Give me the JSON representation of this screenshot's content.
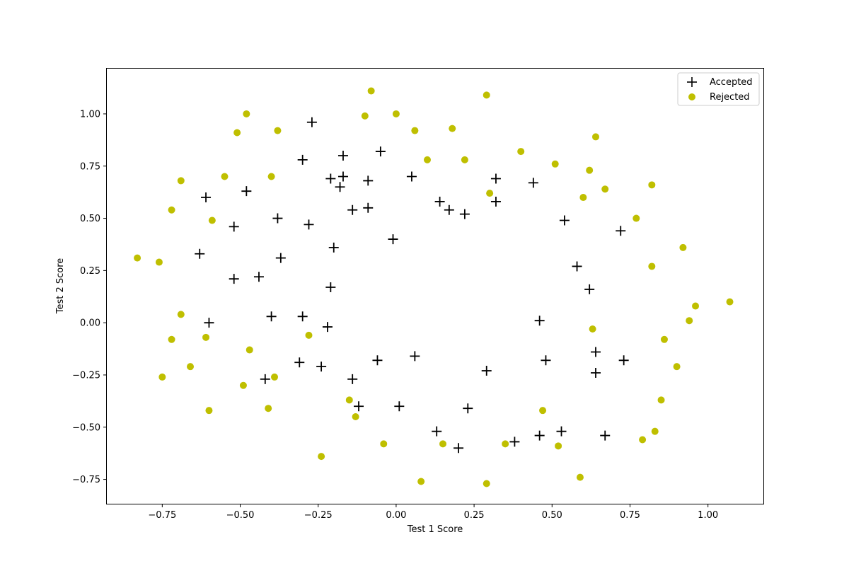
{
  "chart_data": {
    "type": "scatter",
    "title": "",
    "xlabel": "Test 1 Score",
    "ylabel": "Test 2 Score",
    "xlim": [
      -0.93,
      1.18
    ],
    "ylim": [
      -0.87,
      1.22
    ],
    "xticks": [
      {
        "value": -0.75,
        "label": "−0.75"
      },
      {
        "value": -0.5,
        "label": "−0.50"
      },
      {
        "value": -0.25,
        "label": "−0.25"
      },
      {
        "value": 0.0,
        "label": "0.00"
      },
      {
        "value": 0.25,
        "label": "0.25"
      },
      {
        "value": 0.5,
        "label": "0.50"
      },
      {
        "value": 0.75,
        "label": "0.75"
      },
      {
        "value": 1.0,
        "label": "1.00"
      }
    ],
    "yticks": [
      {
        "value": -0.75,
        "label": "−0.75"
      },
      {
        "value": -0.5,
        "label": "−0.50"
      },
      {
        "value": -0.25,
        "label": "−0.25"
      },
      {
        "value": 0.0,
        "label": "0.00"
      },
      {
        "value": 0.25,
        "label": "0.25"
      },
      {
        "value": 0.5,
        "label": "0.50"
      },
      {
        "value": 0.75,
        "label": "0.75"
      },
      {
        "value": 1.0,
        "label": "1.00"
      }
    ],
    "grid": false,
    "legend_position": "top-right",
    "series": [
      {
        "name": "Accepted",
        "marker": "plus",
        "color": "#000000",
        "points": [
          [
            -0.27,
            0.96
          ],
          [
            -0.3,
            0.78
          ],
          [
            -0.17,
            0.8
          ],
          [
            -0.05,
            0.82
          ],
          [
            -0.21,
            0.69
          ],
          [
            -0.17,
            0.7
          ],
          [
            -0.18,
            0.65
          ],
          [
            -0.09,
            0.68
          ],
          [
            -0.48,
            0.63
          ],
          [
            -0.61,
            0.6
          ],
          [
            -0.52,
            0.46
          ],
          [
            -0.38,
            0.5
          ],
          [
            -0.28,
            0.47
          ],
          [
            -0.14,
            0.54
          ],
          [
            -0.09,
            0.55
          ],
          [
            0.05,
            0.7
          ],
          [
            0.14,
            0.58
          ],
          [
            0.17,
            0.54
          ],
          [
            0.22,
            0.52
          ],
          [
            0.32,
            0.69
          ],
          [
            0.32,
            0.58
          ],
          [
            0.44,
            0.67
          ],
          [
            0.54,
            0.49
          ],
          [
            0.72,
            0.44
          ],
          [
            -0.01,
            0.4
          ],
          [
            -0.2,
            0.36
          ],
          [
            -0.63,
            0.33
          ],
          [
            -0.37,
            0.31
          ],
          [
            -0.52,
            0.21
          ],
          [
            -0.44,
            0.22
          ],
          [
            -0.21,
            0.17
          ],
          [
            0.58,
            0.27
          ],
          [
            0.62,
            0.16
          ],
          [
            -0.4,
            0.03
          ],
          [
            -0.3,
            0.03
          ],
          [
            -0.6,
            0.0
          ],
          [
            -0.22,
            -0.02
          ],
          [
            0.46,
            0.01
          ],
          [
            -0.31,
            -0.19
          ],
          [
            -0.24,
            -0.21
          ],
          [
            -0.14,
            -0.27
          ],
          [
            -0.06,
            -0.18
          ],
          [
            0.06,
            -0.16
          ],
          [
            0.29,
            -0.23
          ],
          [
            0.48,
            -0.18
          ],
          [
            0.64,
            -0.14
          ],
          [
            0.64,
            -0.24
          ],
          [
            0.73,
            -0.18
          ],
          [
            -0.42,
            -0.27
          ],
          [
            -0.12,
            -0.4
          ],
          [
            0.01,
            -0.4
          ],
          [
            0.23,
            -0.41
          ],
          [
            0.13,
            -0.52
          ],
          [
            0.2,
            -0.6
          ],
          [
            0.38,
            -0.57
          ],
          [
            0.46,
            -0.54
          ],
          [
            0.53,
            -0.52
          ],
          [
            0.67,
            -0.54
          ]
        ]
      },
      {
        "name": "Rejected",
        "marker": "circle",
        "color": "#bfbf00",
        "points": [
          [
            -0.08,
            1.11
          ],
          [
            0.29,
            1.09
          ],
          [
            -0.48,
            1.0
          ],
          [
            -0.1,
            0.99
          ],
          [
            0.0,
            1.0
          ],
          [
            -0.51,
            0.91
          ],
          [
            -0.38,
            0.92
          ],
          [
            0.06,
            0.92
          ],
          [
            0.18,
            0.93
          ],
          [
            0.64,
            0.89
          ],
          [
            0.4,
            0.82
          ],
          [
            0.1,
            0.78
          ],
          [
            0.22,
            0.78
          ],
          [
            0.51,
            0.76
          ],
          [
            0.62,
            0.73
          ],
          [
            -0.69,
            0.68
          ],
          [
            -0.55,
            0.7
          ],
          [
            -0.4,
            0.7
          ],
          [
            0.82,
            0.66
          ],
          [
            0.67,
            0.64
          ],
          [
            0.3,
            0.62
          ],
          [
            0.6,
            0.6
          ],
          [
            -0.72,
            0.54
          ],
          [
            -0.59,
            0.49
          ],
          [
            0.77,
            0.5
          ],
          [
            0.92,
            0.36
          ],
          [
            -0.83,
            0.31
          ],
          [
            -0.76,
            0.29
          ],
          [
            0.82,
            0.27
          ],
          [
            0.96,
            0.08
          ],
          [
            1.07,
            0.1
          ],
          [
            -0.69,
            0.04
          ],
          [
            0.94,
            0.01
          ],
          [
            0.63,
            -0.03
          ],
          [
            -0.28,
            -0.06
          ],
          [
            -0.61,
            -0.07
          ],
          [
            -0.72,
            -0.08
          ],
          [
            0.86,
            -0.08
          ],
          [
            -0.47,
            -0.13
          ],
          [
            0.9,
            -0.21
          ],
          [
            -0.66,
            -0.21
          ],
          [
            -0.75,
            -0.26
          ],
          [
            -0.39,
            -0.26
          ],
          [
            -0.49,
            -0.3
          ],
          [
            -0.15,
            -0.37
          ],
          [
            0.85,
            -0.37
          ],
          [
            -0.6,
            -0.42
          ],
          [
            -0.41,
            -0.41
          ],
          [
            0.47,
            -0.42
          ],
          [
            -0.13,
            -0.45
          ],
          [
            -0.04,
            -0.58
          ],
          [
            0.15,
            -0.58
          ],
          [
            0.35,
            -0.58
          ],
          [
            0.52,
            -0.59
          ],
          [
            0.83,
            -0.52
          ],
          [
            0.79,
            -0.56
          ],
          [
            -0.24,
            -0.64
          ],
          [
            0.59,
            -0.74
          ],
          [
            0.08,
            -0.76
          ],
          [
            0.29,
            -0.77
          ]
        ]
      }
    ]
  }
}
